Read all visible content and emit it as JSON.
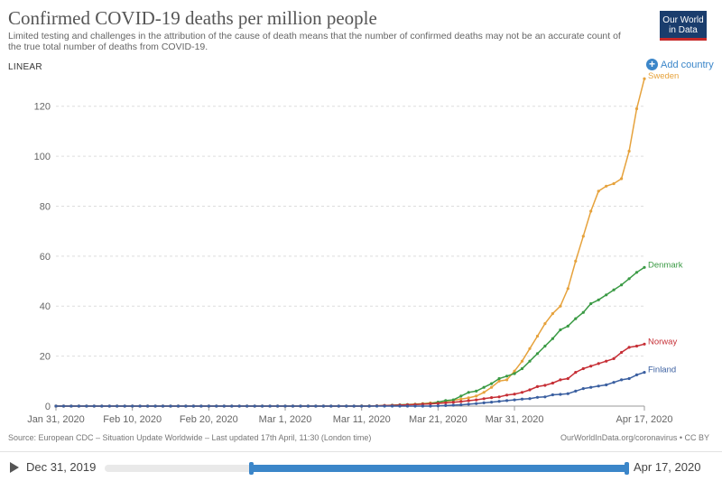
{
  "header": {
    "title": "Confirmed COVID-19 deaths per million people",
    "subtitle": "Limited testing and challenges in the attribution of the cause of death means that the number of confirmed deaths may not be an accurate count of the true total number of deaths from COVID-19.",
    "logo_line1": "Our World",
    "logo_line2": "in Data"
  },
  "controls": {
    "scale_label": "LINEAR",
    "add_country_label": "Add country",
    "add_icon_glyph": "+"
  },
  "footer": {
    "source": "Source: European CDC – Situation Update Worldwide – Last updated 17th April, 11:30 (London time)",
    "credit": "OurWorldInData.org/coronavirus • CC BY"
  },
  "timeline": {
    "start_label": "Dec 31, 2019",
    "end_label": "Apr 17, 2020",
    "range_start_fraction": 0.28,
    "range_end_fraction": 1.0
  },
  "chart_data": {
    "type": "line",
    "title": "Confirmed COVID-19 deaths per million people",
    "xlabel": "",
    "ylabel": "",
    "x_range": [
      "2020-01-31",
      "2020-04-17"
    ],
    "ylim": [
      0,
      130
    ],
    "yticks": [
      0,
      20,
      40,
      60,
      80,
      100,
      120
    ],
    "xticks": [
      {
        "date": "2020-01-31",
        "label": "Jan 31, 2020"
      },
      {
        "date": "2020-02-10",
        "label": "Feb 10, 2020"
      },
      {
        "date": "2020-02-20",
        "label": "Feb 20, 2020"
      },
      {
        "date": "2020-03-01",
        "label": "Mar 1, 2020"
      },
      {
        "date": "2020-03-11",
        "label": "Mar 11, 2020"
      },
      {
        "date": "2020-03-21",
        "label": "Mar 21, 2020"
      },
      {
        "date": "2020-03-31",
        "label": "Mar 31, 2020"
      },
      {
        "date": "2020-04-17",
        "label": "Apr 17, 2020"
      }
    ],
    "grid": "horizontal",
    "legend": "line-end labels",
    "series": [
      {
        "name": "Sweden",
        "color": "#e6a23c",
        "points": [
          [
            "2020-01-31",
            0
          ],
          [
            "2020-03-10",
            0
          ],
          [
            "2020-03-11",
            0.1
          ],
          [
            "2020-03-13",
            0.1
          ],
          [
            "2020-03-15",
            0.3
          ],
          [
            "2020-03-17",
            0.6
          ],
          [
            "2020-03-19",
            1
          ],
          [
            "2020-03-21",
            1.5
          ],
          [
            "2020-03-23",
            2.3
          ],
          [
            "2020-03-25",
            3.3
          ],
          [
            "2020-03-26",
            4
          ],
          [
            "2020-03-27",
            5.5
          ],
          [
            "2020-03-28",
            7.5
          ],
          [
            "2020-03-29",
            10
          ],
          [
            "2020-03-30",
            10.5
          ],
          [
            "2020-03-31",
            14
          ],
          [
            "2020-04-01",
            18
          ],
          [
            "2020-04-02",
            23
          ],
          [
            "2020-04-03",
            28
          ],
          [
            "2020-04-04",
            33
          ],
          [
            "2020-04-05",
            37
          ],
          [
            "2020-04-06",
            40
          ],
          [
            "2020-04-07",
            47
          ],
          [
            "2020-04-08",
            58
          ],
          [
            "2020-04-09",
            68
          ],
          [
            "2020-04-10",
            78
          ],
          [
            "2020-04-11",
            86
          ],
          [
            "2020-04-12",
            88
          ],
          [
            "2020-04-13",
            89
          ],
          [
            "2020-04-14",
            91
          ],
          [
            "2020-04-15",
            102
          ],
          [
            "2020-04-16",
            119
          ],
          [
            "2020-04-17",
            131
          ]
        ]
      },
      {
        "name": "Denmark",
        "color": "#3a9a44",
        "points": [
          [
            "2020-01-31",
            0
          ],
          [
            "2020-03-12",
            0
          ],
          [
            "2020-03-14",
            0.2
          ],
          [
            "2020-03-16",
            0.5
          ],
          [
            "2020-03-18",
            0.7
          ],
          [
            "2020-03-20",
            1
          ],
          [
            "2020-03-21",
            1.6
          ],
          [
            "2020-03-22",
            2.2
          ],
          [
            "2020-03-23",
            2.5
          ],
          [
            "2020-03-24",
            4
          ],
          [
            "2020-03-25",
            5.5
          ],
          [
            "2020-03-26",
            6
          ],
          [
            "2020-03-27",
            7.5
          ],
          [
            "2020-03-28",
            9
          ],
          [
            "2020-03-29",
            11
          ],
          [
            "2020-03-30",
            12
          ],
          [
            "2020-03-31",
            13
          ],
          [
            "2020-04-01",
            15
          ],
          [
            "2020-04-02",
            18
          ],
          [
            "2020-04-03",
            21
          ],
          [
            "2020-04-04",
            24
          ],
          [
            "2020-04-05",
            27
          ],
          [
            "2020-04-06",
            30.5
          ],
          [
            "2020-04-07",
            32
          ],
          [
            "2020-04-08",
            35
          ],
          [
            "2020-04-09",
            37.5
          ],
          [
            "2020-04-10",
            41
          ],
          [
            "2020-04-11",
            42.5
          ],
          [
            "2020-04-12",
            44.5
          ],
          [
            "2020-04-13",
            46.5
          ],
          [
            "2020-04-14",
            48.5
          ],
          [
            "2020-04-15",
            51
          ],
          [
            "2020-04-16",
            53.5
          ],
          [
            "2020-04-17",
            55.5
          ]
        ]
      },
      {
        "name": "Norway",
        "color": "#c62f36",
        "points": [
          [
            "2020-01-31",
            0
          ],
          [
            "2020-03-12",
            0
          ],
          [
            "2020-03-14",
            0.2
          ],
          [
            "2020-03-16",
            0.4
          ],
          [
            "2020-03-18",
            0.6
          ],
          [
            "2020-03-20",
            0.9
          ],
          [
            "2020-03-22",
            1.3
          ],
          [
            "2020-03-24",
            1.8
          ],
          [
            "2020-03-26",
            2.5
          ],
          [
            "2020-03-28",
            3.4
          ],
          [
            "2020-03-29",
            3.7
          ],
          [
            "2020-03-30",
            4.4
          ],
          [
            "2020-03-31",
            4.8
          ],
          [
            "2020-04-01",
            5.5
          ],
          [
            "2020-04-02",
            6.5
          ],
          [
            "2020-04-03",
            7.8
          ],
          [
            "2020-04-04",
            8.3
          ],
          [
            "2020-04-05",
            9.2
          ],
          [
            "2020-04-06",
            10.5
          ],
          [
            "2020-04-07",
            11
          ],
          [
            "2020-04-08",
            13.5
          ],
          [
            "2020-04-09",
            15
          ],
          [
            "2020-04-10",
            16
          ],
          [
            "2020-04-11",
            17
          ],
          [
            "2020-04-12",
            18
          ],
          [
            "2020-04-13",
            19
          ],
          [
            "2020-04-14",
            21.5
          ],
          [
            "2020-04-15",
            23.5
          ],
          [
            "2020-04-16",
            24
          ],
          [
            "2020-04-17",
            24.8
          ]
        ]
      },
      {
        "name": "Finland",
        "color": "#3a5fa0",
        "points": [
          [
            "2020-01-31",
            0
          ],
          [
            "2020-03-20",
            0
          ],
          [
            "2020-03-22",
            0.2
          ],
          [
            "2020-03-24",
            0.5
          ],
          [
            "2020-03-26",
            1
          ],
          [
            "2020-03-28",
            1.6
          ],
          [
            "2020-03-30",
            2.2
          ],
          [
            "2020-03-31",
            2.5
          ],
          [
            "2020-04-01",
            2.8
          ],
          [
            "2020-04-02",
            3
          ],
          [
            "2020-04-03",
            3.5
          ],
          [
            "2020-04-04",
            3.7
          ],
          [
            "2020-04-05",
            4.5
          ],
          [
            "2020-04-06",
            4.7
          ],
          [
            "2020-04-07",
            5
          ],
          [
            "2020-04-08",
            6
          ],
          [
            "2020-04-09",
            7
          ],
          [
            "2020-04-10",
            7.5
          ],
          [
            "2020-04-11",
            8
          ],
          [
            "2020-04-12",
            8.5
          ],
          [
            "2020-04-13",
            9.5
          ],
          [
            "2020-04-14",
            10.5
          ],
          [
            "2020-04-15",
            11
          ],
          [
            "2020-04-16",
            12.5
          ],
          [
            "2020-04-17",
            13.5
          ]
        ]
      }
    ]
  }
}
